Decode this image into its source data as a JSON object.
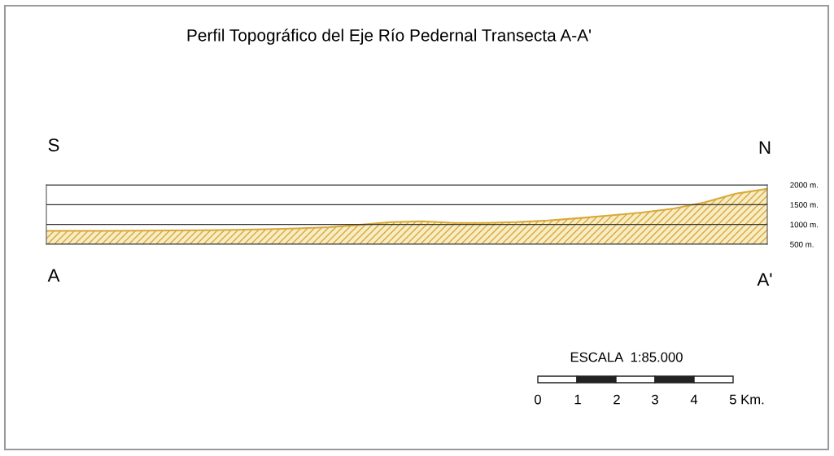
{
  "chart_data": {
    "type": "area",
    "title": "Perfil Topográfico del Eje Río Pedernal Transecta A-A'",
    "categories": [
      null,
      null,
      null,
      null,
      null,
      null,
      null,
      null,
      null,
      null,
      null,
      null,
      null,
      null,
      null,
      null,
      null,
      null,
      null,
      null,
      null,
      null,
      null,
      null
    ],
    "series": [
      {
        "color": "#d9a93a",
        "values": [
          840,
          840,
          840,
          845,
          850,
          855,
          865,
          880,
          900,
          930,
          990,
          1060,
          1080,
          1040,
          1040,
          1060,
          1100,
          1160,
          1230,
          1300,
          1400,
          1560,
          1780,
          1900
        ]
      }
    ],
    "ylim": [
      500,
      2000
    ],
    "yticks": [
      {
        "value": 500,
        "label": "500 m."
      },
      {
        "value": 1000,
        "label": "1000 m."
      },
      {
        "value": 1500,
        "label": "1500 m."
      },
      {
        "value": 2000,
        "label": "2000 m."
      }
    ],
    "grid": "y",
    "tick_labels": "y",
    "annotations": [
      "S",
      "N",
      "A",
      "A'",
      "ESCALA  1:85.000",
      "0",
      "1",
      "2",
      "3",
      "4",
      "5 Km."
    ]
  }
}
